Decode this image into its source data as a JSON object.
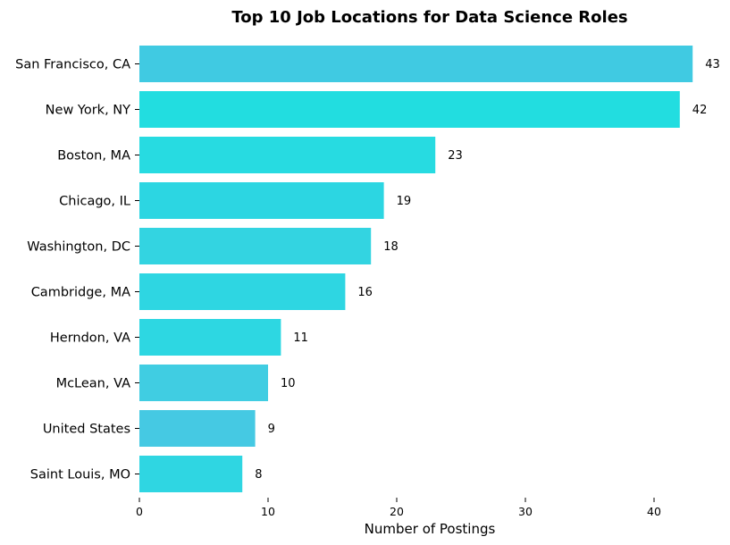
{
  "chart_data": {
    "type": "bar",
    "orientation": "horizontal",
    "title": "Top 10 Job Locations for Data Science Roles",
    "xlabel": "Number of Postings",
    "ylabel": "",
    "categories": [
      "San Francisco, CA",
      "New York, NY",
      "Boston, MA",
      "Chicago, IL",
      "Washington, DC",
      "Cambridge, MA",
      "Herndon, VA",
      "McLean, VA",
      "United States",
      "Saint Louis, MO"
    ],
    "values": [
      43,
      42,
      23,
      19,
      18,
      16,
      11,
      10,
      9,
      8
    ],
    "colors": [
      "#40cae2",
      "#22dde0",
      "#27dbe1",
      "#2cd6e2",
      "#33d4e1",
      "#2ed6e2",
      "#2dd7e2",
      "#40cde2",
      "#45c9e3",
      "#2fd6e2"
    ],
    "xlim": [
      0,
      45
    ],
    "xticks": [
      0,
      10,
      20,
      30,
      40
    ],
    "grid": false,
    "data_labels": true,
    "legend": "none"
  }
}
